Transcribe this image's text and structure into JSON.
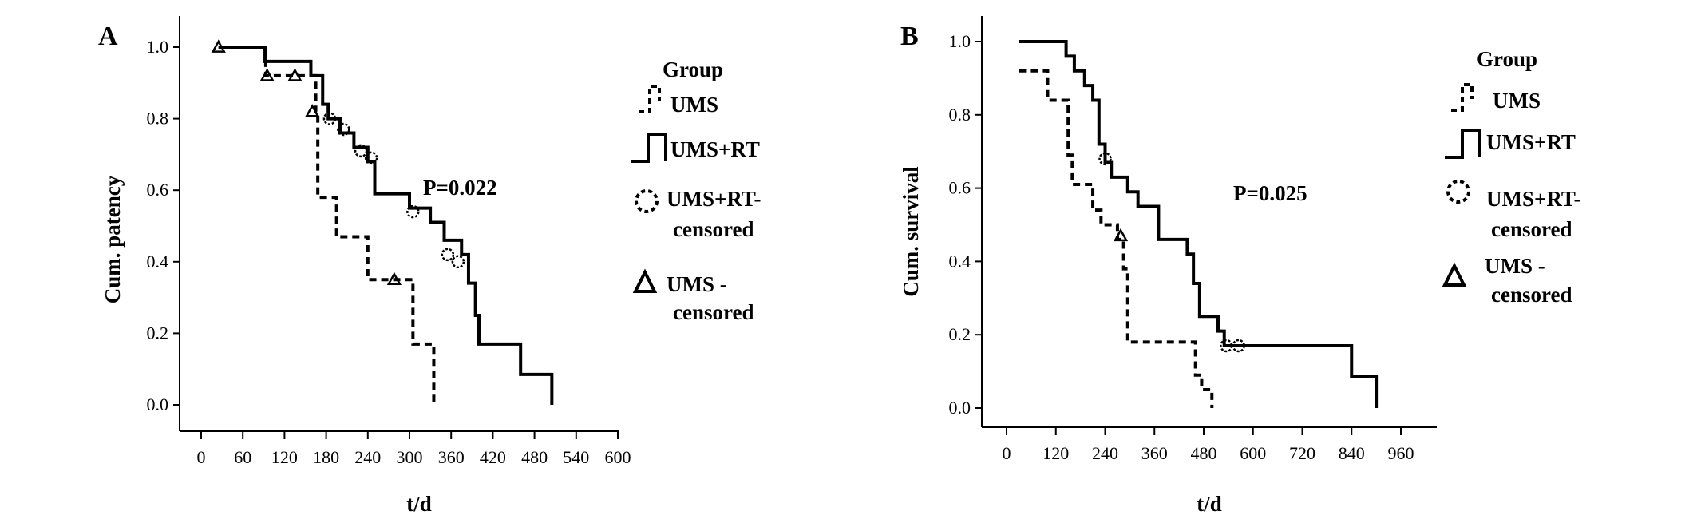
{
  "chart_data": [
    {
      "type": "line",
      "panel": "A",
      "ylabel": "Cum. patency",
      "xlabel": "t/d",
      "xlim": [
        0,
        600
      ],
      "ylim": [
        0,
        1.0
      ],
      "xticks": [
        "0",
        "60",
        "120",
        "180",
        "240",
        "300",
        "360",
        "420",
        "480",
        "540",
        "600"
      ],
      "yticks": [
        "0.0",
        "0.2",
        "0.4",
        "0.6",
        "0.8",
        "1.0"
      ],
      "annotation": "P=0.022",
      "legend": {
        "title": "Group",
        "placement": "right",
        "entries": [
          {
            "key": "ums",
            "lines": [
              "UMS"
            ]
          },
          {
            "key": "umsrt",
            "lines": [
              "UMS+RT"
            ]
          },
          {
            "key": "umsrt_c",
            "lines": [
              "UMS+RT-",
              "censored"
            ]
          },
          {
            "key": "ums_c",
            "lines": [
              "UMS -",
              "censored"
            ]
          }
        ]
      },
      "series": [
        {
          "name": "UMS",
          "style": "dashed",
          "x": [
            25,
            93,
            145,
            165,
            168,
            195,
            222,
            240,
            265,
            275,
            300,
            305,
            330,
            335
          ],
          "y": [
            1.0,
            0.92,
            0.92,
            0.82,
            0.58,
            0.47,
            0.47,
            0.35,
            0.35,
            0.35,
            0.35,
            0.17,
            0.17,
            0.0
          ]
        },
        {
          "name": "UMS+RT",
          "style": "solid",
          "x": [
            25,
            92,
            158,
            175,
            183,
            200,
            220,
            240,
            250,
            300,
            330,
            350,
            375,
            385,
            395,
            400,
            460,
            505
          ],
          "y": [
            1.0,
            0.96,
            0.92,
            0.84,
            0.8,
            0.76,
            0.72,
            0.68,
            0.59,
            0.55,
            0.51,
            0.46,
            0.42,
            0.34,
            0.25,
            0.17,
            0.085,
            0.0
          ]
        }
      ],
      "censored": [
        {
          "group": "UMS+RT",
          "x": [
            185,
            205,
            230,
            245,
            305,
            355,
            370
          ],
          "y": [
            0.8,
            0.77,
            0.71,
            0.69,
            0.54,
            0.42,
            0.4
          ]
        },
        {
          "group": "UMS",
          "x": [
            25,
            95,
            135,
            160,
            278
          ],
          "y": [
            1.0,
            0.92,
            0.92,
            0.82,
            0.35
          ]
        }
      ]
    },
    {
      "type": "line",
      "panel": "B",
      "ylabel": "Cum. survival",
      "xlabel": "t/d",
      "xlim": [
        0,
        960
      ],
      "ylim": [
        0,
        1.0
      ],
      "xticks": [
        "0",
        "120",
        "240",
        "360",
        "480",
        "600",
        "720",
        "840",
        "960"
      ],
      "yticks": [
        "0.0",
        "0.2",
        "0.4",
        "0.6",
        "0.8",
        "1.0"
      ],
      "annotation": "P=0.025",
      "legend": {
        "title": "Group",
        "placement": "right",
        "entries": [
          {
            "key": "ums",
            "lines": [
              "UMS"
            ]
          },
          {
            "key": "umsrt",
            "lines": [
              "UMS+RT"
            ]
          },
          {
            "key": "umsrt_c",
            "lines": [
              "UMS+RT-",
              "censored"
            ]
          },
          {
            "key": "ums_c",
            "lines": [
              "UMS -",
              "censored"
            ]
          }
        ]
      },
      "series": [
        {
          "name": "UMS",
          "style": "dashed",
          "x": [
            30,
            100,
            150,
            160,
            210,
            230,
            270,
            285,
            295,
            460,
            475,
            500
          ],
          "y": [
            0.92,
            0.84,
            0.69,
            0.61,
            0.54,
            0.5,
            0.46,
            0.38,
            0.18,
            0.09,
            0.05,
            0.0
          ]
        },
        {
          "name": "UMS+RT",
          "style": "solid",
          "x": [
            30,
            145,
            165,
            190,
            210,
            225,
            240,
            255,
            295,
            320,
            370,
            440,
            455,
            470,
            480,
            515,
            530,
            545,
            840,
            900
          ],
          "y": [
            1.0,
            0.96,
            0.92,
            0.88,
            0.84,
            0.72,
            0.67,
            0.63,
            0.59,
            0.55,
            0.46,
            0.42,
            0.34,
            0.25,
            0.25,
            0.21,
            0.17,
            0.17,
            0.085,
            0.0
          ]
        }
      ],
      "censored": [
        {
          "group": "UMS+RT",
          "x": [
            240,
            535,
            565
          ],
          "y": [
            0.68,
            0.17,
            0.17
          ]
        },
        {
          "group": "UMS",
          "x": [
            278
          ],
          "y": [
            0.47
          ]
        }
      ]
    }
  ]
}
